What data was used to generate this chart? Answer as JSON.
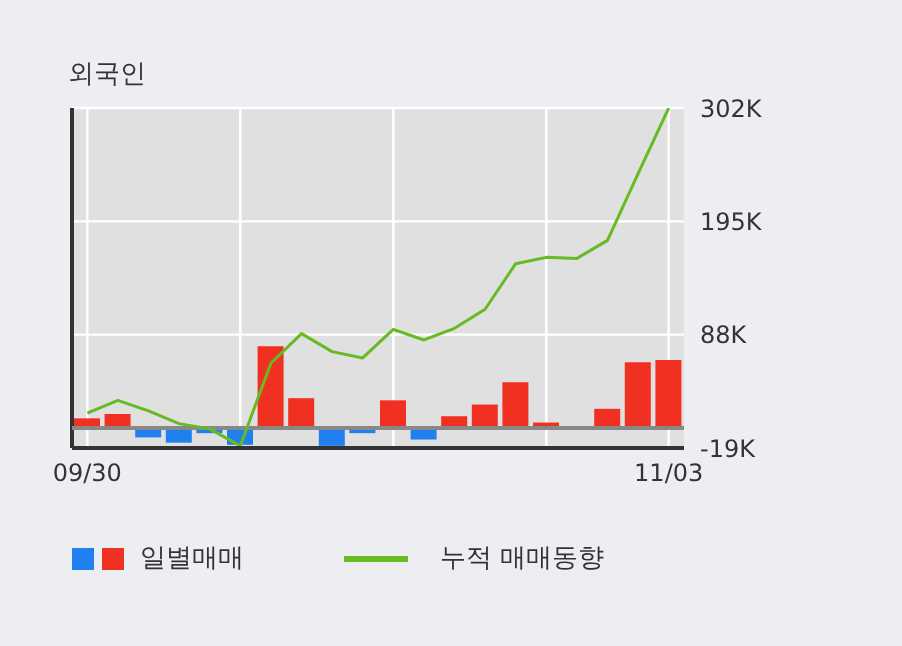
{
  "chart_data": {
    "type": "bar",
    "title": "외국인",
    "categories": [
      "09/30",
      null,
      null,
      null,
      null,
      null,
      null,
      null,
      null,
      null,
      null,
      null,
      null,
      null,
      null,
      null,
      null,
      null,
      null,
      "11/03"
    ],
    "series": [
      {
        "name": "일별매매",
        "values": [
          9,
          13,
          -9,
          -14,
          -5,
          -16,
          77,
          28,
          -17,
          -5,
          26,
          -11,
          11,
          22,
          43,
          5,
          0,
          18,
          62,
          64
        ],
        "colors": [
          "#f03020",
          "#f03020",
          "#2080f0",
          "#2080f0",
          "#2080f0",
          "#2080f0",
          "#f03020",
          "#f03020",
          "#2080f0",
          "#2080f0",
          "#f03020",
          "#2080f0",
          "#f03020",
          "#f03020",
          "#f03020",
          "#f03020",
          "#f03020",
          "#f03020",
          "#f03020",
          "#f03020"
        ]
      },
      {
        "name": "누적 매매동향",
        "type": "line",
        "color": "#66bb22",
        "values": [
          14,
          26,
          16,
          4,
          -1,
          -17,
          61,
          89,
          72,
          66,
          93,
          83,
          94,
          112,
          155,
          161,
          160,
          177,
          240,
          302
        ]
      }
    ],
    "ylim": [
      -19,
      302
    ],
    "yticks": [
      {
        "value": -19,
        "label": "-19K"
      },
      {
        "value": 88,
        "label": "88K"
      },
      {
        "value": 195,
        "label": "195K"
      },
      {
        "value": 302,
        "label": "302K"
      }
    ],
    "ref_lines": [
      {
        "axis": "y",
        "value": 0,
        "color": "#888888"
      }
    ],
    "grid": true,
    "legend": "bottom"
  }
}
